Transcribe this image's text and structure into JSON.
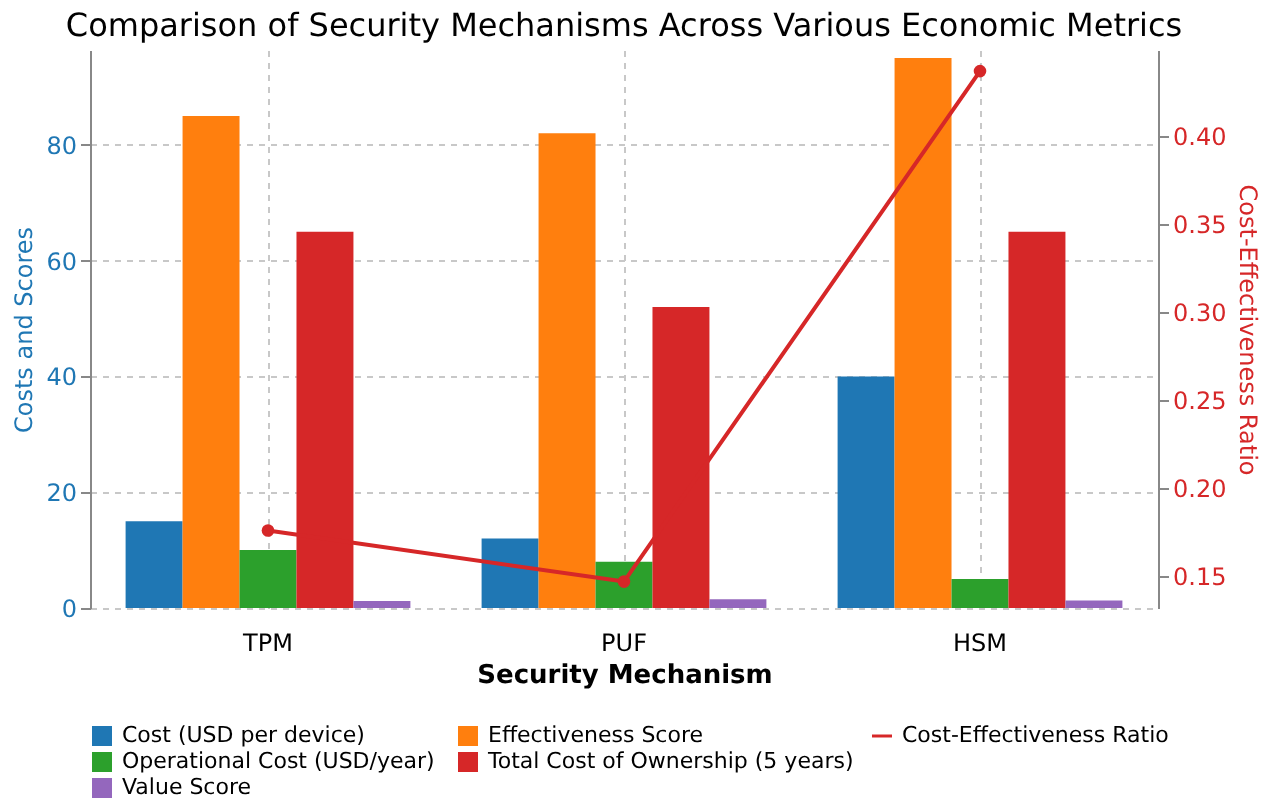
{
  "chart_data": {
    "type": "bar",
    "title": "Comparison of Security Mechanisms Across Various Economic Metrics",
    "xlabel": "Security Mechanism",
    "ylabel": "Costs and Scores",
    "y2label": "Cost-Effectiveness Ratio",
    "categories": [
      "TPM",
      "PUF",
      "HSM"
    ],
    "series": [
      {
        "name": "Cost (USD per device)",
        "color": "#1f77b4",
        "values": [
          15,
          12,
          40
        ]
      },
      {
        "name": "Effectiveness Score",
        "color": "#ff7f0e",
        "values": [
          85,
          82,
          95
        ]
      },
      {
        "name": "Operational Cost (USD/year)",
        "color": "#2ca02c",
        "values": [
          10,
          8,
          5
        ]
      },
      {
        "name": "Total Cost of Ownership (5 years)",
        "color": "#d62728",
        "values": [
          65,
          52,
          65
        ]
      },
      {
        "name": "Value Score",
        "color": "#9467bd",
        "values": [
          1.2,
          1.5,
          1.3
        ]
      },
      {
        "name": "Cost-Effectiveness Ratio",
        "color": "#d62728",
        "type": "line",
        "axis": "y2",
        "marker": "circle",
        "values": [
          0.176,
          0.147,
          0.437
        ]
      }
    ],
    "ylim": [
      0,
      96.4
    ],
    "yticks": [
      0,
      20,
      40,
      60,
      80
    ],
    "y2lim": [
      0.132,
      0.449
    ],
    "y2ticks": [
      0.15,
      {
        "value": 0.2,
        "label": "0.20"
      },
      0.25,
      {
        "value": 0.3,
        "label": "0.30"
      },
      0.35,
      {
        "value": 0.4,
        "label": "0.40"
      }
    ],
    "grid": true,
    "legend": "bottom"
  }
}
